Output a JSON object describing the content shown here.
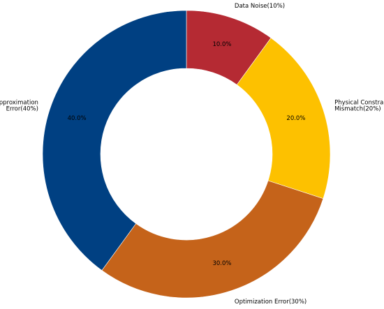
{
  "chart_data": {
    "type": "pie",
    "donut": true,
    "title": "",
    "legend": "none",
    "slices": [
      {
        "label_lines": [
          "Data Noise(10%)"
        ],
        "value": 10,
        "pct_label": "10.0%",
        "color": "#b52a33"
      },
      {
        "label_lines": [
          "Physical Constraint",
          "Mismatch(20%)"
        ],
        "value": 20,
        "pct_label": "20.0%",
        "color": "#fdc100"
      },
      {
        "label_lines": [
          "Optimization Error(30%)"
        ],
        "value": 30,
        "pct_label": "30.0%",
        "color": "#c5631a"
      },
      {
        "label_lines": [
          "Approximation",
          "Error(40%)"
        ],
        "value": 40,
        "pct_label": "40.0%",
        "color": "#004082"
      }
    ]
  }
}
